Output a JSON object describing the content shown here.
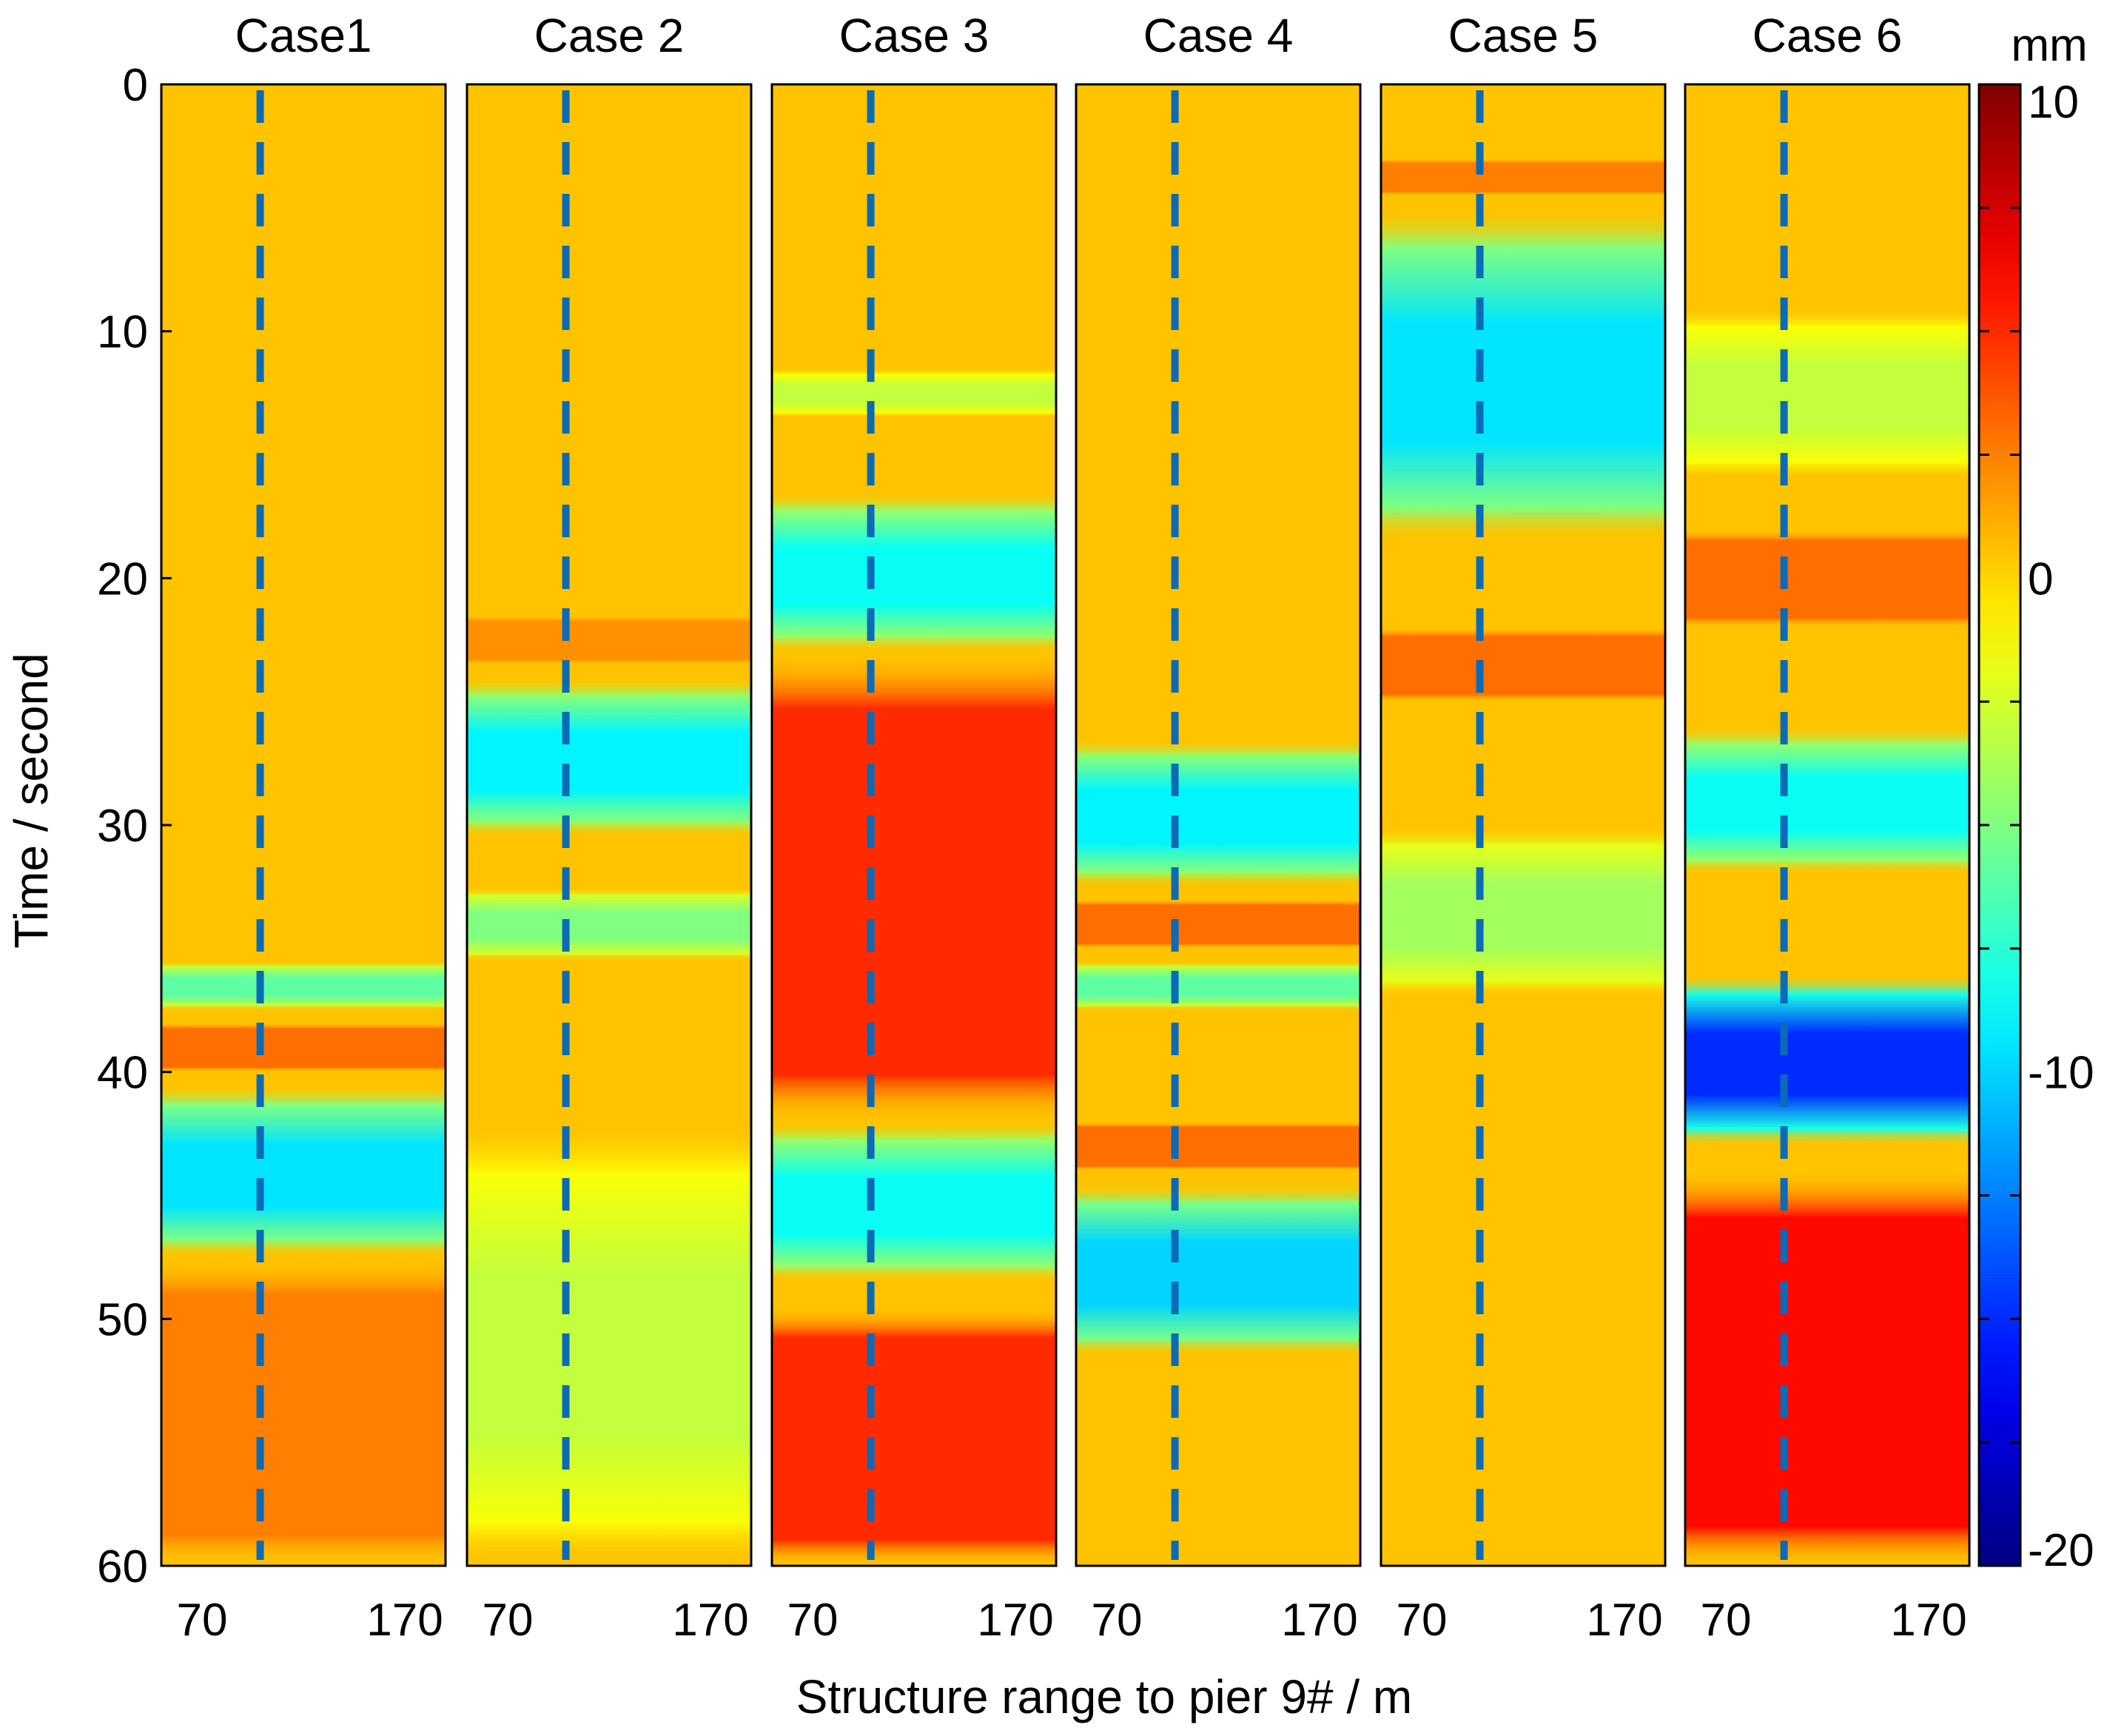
{
  "chart_data": {
    "type": "heatmap",
    "xlabel": "Structure range to pier 9#  / m",
    "ylabel": "Time / second",
    "ylim": [
      0,
      60
    ],
    "xlim": [
      60,
      175
    ],
    "y_ticks": [
      0,
      10,
      20,
      30,
      40,
      50,
      60
    ],
    "x_tick_labels": [
      "70",
      "170"
    ],
    "pier_marker_x": 100,
    "colorbar": {
      "unit": "mm",
      "range": [
        -20,
        10
      ],
      "tick_labels": [
        "10",
        "0",
        "-10",
        "-20"
      ],
      "tick_values": [
        10,
        0,
        -10,
        -20
      ],
      "minor_ticks": [
        7.5,
        5,
        2.5,
        -2.5,
        -5,
        -7.5,
        -12.5,
        -15,
        -17.5
      ],
      "colormap": "jet"
    },
    "baseline_mm": 0.5,
    "panels": [
      {
        "name": "Case1",
        "events": [
          {
            "t_start": 40.5,
            "t_end": 47.5,
            "min_mm": -9.5,
            "type": "dip"
          },
          {
            "t_start": 35.5,
            "t_end": 37.5,
            "min_mm": -6,
            "type": "dip"
          },
          {
            "t_start": 38,
            "t_end": 40,
            "min_mm": 3,
            "type": "rise"
          },
          {
            "t_start": 47.5,
            "t_end": 60,
            "min_mm": 2.5,
            "type": "rise"
          }
        ]
      },
      {
        "name": "Case 2",
        "events": [
          {
            "t_start": 24,
            "t_end": 30.5,
            "min_mm": -9,
            "type": "dip"
          },
          {
            "t_start": 32.5,
            "t_end": 35.5,
            "min_mm": -5,
            "type": "dip"
          },
          {
            "t_start": 21.5,
            "t_end": 23.5,
            "min_mm": 2,
            "type": "rise"
          },
          {
            "t_start": 42,
            "t_end": 60,
            "min_mm": -3,
            "type": "dip"
          }
        ]
      },
      {
        "name": "Case 3",
        "events": [
          {
            "t_start": 16.5,
            "t_end": 23,
            "min_mm": -8.5,
            "type": "dip"
          },
          {
            "t_start": 42,
            "t_end": 48.5,
            "min_mm": -8.5,
            "type": "dip"
          },
          {
            "t_start": 11.5,
            "t_end": 13.5,
            "min_mm": -3,
            "type": "dip"
          },
          {
            "t_start": 23,
            "t_end": 42,
            "min_mm": 5,
            "type": "rise"
          },
          {
            "t_start": 49.5,
            "t_end": 60,
            "min_mm": 5,
            "type": "rise"
          }
        ]
      },
      {
        "name": "Case 4",
        "events": [
          {
            "t_start": 26.5,
            "t_end": 32.5,
            "min_mm": -9,
            "type": "dip"
          },
          {
            "t_start": 35.5,
            "t_end": 37.5,
            "min_mm": -6,
            "type": "dip"
          },
          {
            "t_start": 44.5,
            "t_end": 51.5,
            "min_mm": -10,
            "type": "dip"
          },
          {
            "t_start": 33,
            "t_end": 35,
            "min_mm": 3,
            "type": "rise"
          },
          {
            "t_start": 42,
            "t_end": 44,
            "min_mm": 3,
            "type": "rise"
          }
        ]
      },
      {
        "name": "Case 5",
        "events": [
          {
            "t_start": 5,
            "t_end": 18.5,
            "min_mm": -9.5,
            "type": "dip"
          },
          {
            "t_start": 22,
            "t_end": 25,
            "min_mm": 3,
            "type": "rise"
          },
          {
            "t_start": 30,
            "t_end": 37,
            "min_mm": -4,
            "type": "dip"
          },
          {
            "t_start": 3,
            "t_end": 4.5,
            "min_mm": 2.5,
            "type": "rise"
          }
        ]
      },
      {
        "name": "Case 6",
        "events": [
          {
            "t_start": 36,
            "t_end": 43,
            "min_mm": -15,
            "type": "dip"
          },
          {
            "t_start": 26,
            "t_end": 32,
            "min_mm": -8.5,
            "type": "dip"
          },
          {
            "t_start": 9,
            "t_end": 16,
            "min_mm": -3,
            "type": "dip"
          },
          {
            "t_start": 18,
            "t_end": 22,
            "min_mm": 3,
            "type": "rise"
          },
          {
            "t_start": 44,
            "t_end": 60,
            "min_mm": 6,
            "type": "rise"
          }
        ]
      }
    ]
  }
}
